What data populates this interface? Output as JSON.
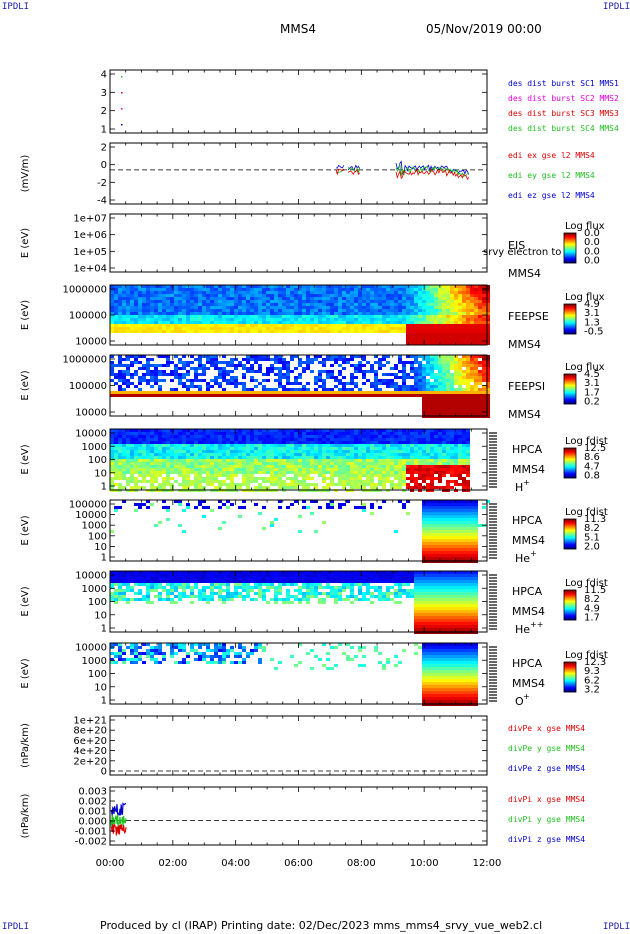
{
  "header": {
    "corner_tl": "IPDLI",
    "corner_tr": "IPDLI",
    "corner_bl": "IPDLI",
    "corner_br": "IPDLI",
    "title": "MMS4",
    "date": "05/Nov/2019 00:00"
  },
  "footer": {
    "text": "Produced by cl (IRAP)   Printing date: 02/Dec/2023   mms_mms4_srvy_vue_web2.cl"
  },
  "colors": {
    "blue": "#0000cc",
    "magenta": "#e000e0",
    "red": "#dd0000",
    "green": "#20c020"
  },
  "chart_data": [
    {
      "type": "scatter",
      "id": "des-dist",
      "y_ticks": [
        "4",
        "3",
        "2",
        "1"
      ],
      "legend": [
        {
          "label": "des dist burst SC1 MMS1",
          "color": "#0000cc"
        },
        {
          "label": "des dist burst SC2 MMS2",
          "color": "#e000e0"
        },
        {
          "label": "des dist burst SC3 MMS3",
          "color": "#dd0000"
        },
        {
          "label": "des dist burst SC4 MMS4",
          "color": "#20c020"
        }
      ]
    },
    {
      "type": "line",
      "id": "edi",
      "ylabel": "(mV/m)",
      "y_ticks": [
        "2",
        "0",
        "-2",
        "-4"
      ],
      "legend": [
        {
          "label": "edi ex gse l2 MMS4",
          "color": "#dd0000"
        },
        {
          "label": "edi ey gse l2 MMS4",
          "color": "#20c020"
        },
        {
          "label": "edi ez gse l2 MMS4",
          "color": "#0000cc"
        }
      ]
    },
    {
      "type": "heatmap",
      "id": "eis",
      "ylabel": "E (eV)",
      "y_ticks": [
        "1e+07",
        "1e+06",
        "1e+05",
        "1e+04"
      ],
      "side_labels": [
        "EIS",
        "MMS4"
      ],
      "overlay_text": "srvy electron to",
      "colorbar": {
        "title": "Log flux",
        "ticks": [
          "0.0",
          "0.0",
          "0.0",
          "0.0"
        ]
      }
    },
    {
      "type": "heatmap",
      "id": "feepse",
      "ylabel": "E (eV)",
      "y_ticks": [
        "1000000",
        "100000",
        "10000"
      ],
      "side_labels": [
        "FEEPSE",
        "MMS4"
      ],
      "colorbar": {
        "title": "Log flux",
        "ticks": [
          "4.9",
          "3.1",
          "1.3",
          "-0.5"
        ]
      }
    },
    {
      "type": "heatmap",
      "id": "feepsi",
      "ylabel": "E (eV)",
      "y_ticks": [
        "1000000",
        "100000",
        "10000"
      ],
      "side_labels": [
        "FEEPSI",
        "MMS4"
      ],
      "colorbar": {
        "title": "Log flux",
        "ticks": [
          "4.5",
          "3.1",
          "1.7",
          "0.2"
        ]
      }
    },
    {
      "type": "heatmap",
      "id": "hpca-h",
      "ylabel": "E (eV)",
      "y_ticks": [
        "10000",
        "1000",
        "100",
        "10",
        "1"
      ],
      "side_labels": [
        "HPCA",
        "MMS4"
      ],
      "species": "H",
      "species_sup": "+",
      "colorbar": {
        "title": "Log fdist",
        "ticks": [
          "12.5",
          "8.6",
          "4.7",
          "0.8"
        ]
      }
    },
    {
      "type": "heatmap",
      "id": "hpca-he",
      "ylabel": "E (eV)",
      "y_ticks": [
        "100000",
        "10000",
        "1000",
        "100",
        "10",
        "1"
      ],
      "side_labels": [
        "HPCA",
        "MMS4"
      ],
      "species": "He",
      "species_sup": "+",
      "colorbar": {
        "title": "Log fdist",
        "ticks": [
          "11.3",
          "8.2",
          "5.1",
          "2.0"
        ]
      }
    },
    {
      "type": "heatmap",
      "id": "hpca-he2",
      "ylabel": "E (eV)",
      "y_ticks": [
        "10000",
        "1000",
        "100",
        "10",
        "1"
      ],
      "side_labels": [
        "HPCA",
        "MMS4"
      ],
      "species": "He",
      "species_sup": "++",
      "colorbar": {
        "title": "Log fdist",
        "ticks": [
          "11.5",
          "8.2",
          "4.9",
          "1.7"
        ]
      }
    },
    {
      "type": "heatmap",
      "id": "hpca-o",
      "ylabel": "E (eV)",
      "y_ticks": [
        "10000",
        "1000",
        "100",
        "10",
        "1"
      ],
      "side_labels": [
        "HPCA",
        "MMS4"
      ],
      "species": "O",
      "species_sup": "+",
      "colorbar": {
        "title": "Log fdist",
        "ticks": [
          "12.3",
          "9.3",
          "6.2",
          "3.2"
        ]
      }
    },
    {
      "type": "line",
      "id": "divpe",
      "ylabel": "(nPa/km)",
      "y_ticks": [
        "1e+21",
        "8e+20",
        "6e+20",
        "4e+20",
        "2e+20",
        "0"
      ],
      "legend": [
        {
          "label": "divPe x gse MMS4",
          "color": "#dd0000"
        },
        {
          "label": "divPe y gse MMS4",
          "color": "#20c020"
        },
        {
          "label": "divPe z gse MMS4",
          "color": "#0000cc"
        }
      ]
    },
    {
      "type": "line",
      "id": "divpi",
      "ylabel": "(nPa/km)",
      "y_ticks": [
        "0.003",
        "0.002",
        "0.001",
        "0.000",
        "-0.001",
        "-0.002"
      ],
      "legend": [
        {
          "label": "divPi x gse MMS4",
          "color": "#dd0000"
        },
        {
          "label": "divPi y gse MMS4",
          "color": "#20c020"
        },
        {
          "label": "divPi z gse MMS4",
          "color": "#0000cc"
        }
      ]
    }
  ],
  "x_axis": {
    "ticks": [
      "00:00",
      "02:00",
      "04:00",
      "06:00",
      "08:00",
      "10:00",
      "12:00"
    ]
  }
}
